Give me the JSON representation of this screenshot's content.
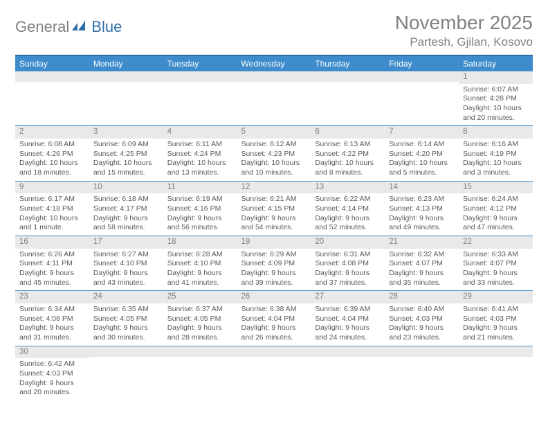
{
  "logo": {
    "text_gray": "General",
    "text_blue": "Blue"
  },
  "header": {
    "month_title": "November 2025",
    "location": "Partesh, Gjilan, Kosovo"
  },
  "colors": {
    "header_bg": "#3e8ccb",
    "accent": "#2f6fa8",
    "daynum_bg": "#e9e9e9",
    "text_gray": "#808080"
  },
  "day_labels": [
    "Sunday",
    "Monday",
    "Tuesday",
    "Wednesday",
    "Thursday",
    "Friday",
    "Saturday"
  ],
  "weeks": [
    [
      {
        "n": "",
        "sunrise": "",
        "sunset": "",
        "daylight": ""
      },
      {
        "n": "",
        "sunrise": "",
        "sunset": "",
        "daylight": ""
      },
      {
        "n": "",
        "sunrise": "",
        "sunset": "",
        "daylight": ""
      },
      {
        "n": "",
        "sunrise": "",
        "sunset": "",
        "daylight": ""
      },
      {
        "n": "",
        "sunrise": "",
        "sunset": "",
        "daylight": ""
      },
      {
        "n": "",
        "sunrise": "",
        "sunset": "",
        "daylight": ""
      },
      {
        "n": "1",
        "sunrise": "Sunrise: 6:07 AM",
        "sunset": "Sunset: 4:28 PM",
        "daylight": "Daylight: 10 hours and 20 minutes."
      }
    ],
    [
      {
        "n": "2",
        "sunrise": "Sunrise: 6:08 AM",
        "sunset": "Sunset: 4:26 PM",
        "daylight": "Daylight: 10 hours and 18 minutes."
      },
      {
        "n": "3",
        "sunrise": "Sunrise: 6:09 AM",
        "sunset": "Sunset: 4:25 PM",
        "daylight": "Daylight: 10 hours and 15 minutes."
      },
      {
        "n": "4",
        "sunrise": "Sunrise: 6:11 AM",
        "sunset": "Sunset: 4:24 PM",
        "daylight": "Daylight: 10 hours and 13 minutes."
      },
      {
        "n": "5",
        "sunrise": "Sunrise: 6:12 AM",
        "sunset": "Sunset: 4:23 PM",
        "daylight": "Daylight: 10 hours and 10 minutes."
      },
      {
        "n": "6",
        "sunrise": "Sunrise: 6:13 AM",
        "sunset": "Sunset: 4:22 PM",
        "daylight": "Daylight: 10 hours and 8 minutes."
      },
      {
        "n": "7",
        "sunrise": "Sunrise: 6:14 AM",
        "sunset": "Sunset: 4:20 PM",
        "daylight": "Daylight: 10 hours and 5 minutes."
      },
      {
        "n": "8",
        "sunrise": "Sunrise: 6:16 AM",
        "sunset": "Sunset: 4:19 PM",
        "daylight": "Daylight: 10 hours and 3 minutes."
      }
    ],
    [
      {
        "n": "9",
        "sunrise": "Sunrise: 6:17 AM",
        "sunset": "Sunset: 4:18 PM",
        "daylight": "Daylight: 10 hours and 1 minute."
      },
      {
        "n": "10",
        "sunrise": "Sunrise: 6:18 AM",
        "sunset": "Sunset: 4:17 PM",
        "daylight": "Daylight: 9 hours and 58 minutes."
      },
      {
        "n": "11",
        "sunrise": "Sunrise: 6:19 AM",
        "sunset": "Sunset: 4:16 PM",
        "daylight": "Daylight: 9 hours and 56 minutes."
      },
      {
        "n": "12",
        "sunrise": "Sunrise: 6:21 AM",
        "sunset": "Sunset: 4:15 PM",
        "daylight": "Daylight: 9 hours and 54 minutes."
      },
      {
        "n": "13",
        "sunrise": "Sunrise: 6:22 AM",
        "sunset": "Sunset: 4:14 PM",
        "daylight": "Daylight: 9 hours and 52 minutes."
      },
      {
        "n": "14",
        "sunrise": "Sunrise: 6:23 AM",
        "sunset": "Sunset: 4:13 PM",
        "daylight": "Daylight: 9 hours and 49 minutes."
      },
      {
        "n": "15",
        "sunrise": "Sunrise: 6:24 AM",
        "sunset": "Sunset: 4:12 PM",
        "daylight": "Daylight: 9 hours and 47 minutes."
      }
    ],
    [
      {
        "n": "16",
        "sunrise": "Sunrise: 6:26 AM",
        "sunset": "Sunset: 4:11 PM",
        "daylight": "Daylight: 9 hours and 45 minutes."
      },
      {
        "n": "17",
        "sunrise": "Sunrise: 6:27 AM",
        "sunset": "Sunset: 4:10 PM",
        "daylight": "Daylight: 9 hours and 43 minutes."
      },
      {
        "n": "18",
        "sunrise": "Sunrise: 6:28 AM",
        "sunset": "Sunset: 4:10 PM",
        "daylight": "Daylight: 9 hours and 41 minutes."
      },
      {
        "n": "19",
        "sunrise": "Sunrise: 6:29 AM",
        "sunset": "Sunset: 4:09 PM",
        "daylight": "Daylight: 9 hours and 39 minutes."
      },
      {
        "n": "20",
        "sunrise": "Sunrise: 6:31 AM",
        "sunset": "Sunset: 4:08 PM",
        "daylight": "Daylight: 9 hours and 37 minutes."
      },
      {
        "n": "21",
        "sunrise": "Sunrise: 6:32 AM",
        "sunset": "Sunset: 4:07 PM",
        "daylight": "Daylight: 9 hours and 35 minutes."
      },
      {
        "n": "22",
        "sunrise": "Sunrise: 6:33 AM",
        "sunset": "Sunset: 4:07 PM",
        "daylight": "Daylight: 9 hours and 33 minutes."
      }
    ],
    [
      {
        "n": "23",
        "sunrise": "Sunrise: 6:34 AM",
        "sunset": "Sunset: 4:06 PM",
        "daylight": "Daylight: 9 hours and 31 minutes."
      },
      {
        "n": "24",
        "sunrise": "Sunrise: 6:35 AM",
        "sunset": "Sunset: 4:05 PM",
        "daylight": "Daylight: 9 hours and 30 minutes."
      },
      {
        "n": "25",
        "sunrise": "Sunrise: 6:37 AM",
        "sunset": "Sunset: 4:05 PM",
        "daylight": "Daylight: 9 hours and 28 minutes."
      },
      {
        "n": "26",
        "sunrise": "Sunrise: 6:38 AM",
        "sunset": "Sunset: 4:04 PM",
        "daylight": "Daylight: 9 hours and 26 minutes."
      },
      {
        "n": "27",
        "sunrise": "Sunrise: 6:39 AM",
        "sunset": "Sunset: 4:04 PM",
        "daylight": "Daylight: 9 hours and 24 minutes."
      },
      {
        "n": "28",
        "sunrise": "Sunrise: 6:40 AM",
        "sunset": "Sunset: 4:03 PM",
        "daylight": "Daylight: 9 hours and 23 minutes."
      },
      {
        "n": "29",
        "sunrise": "Sunrise: 6:41 AM",
        "sunset": "Sunset: 4:03 PM",
        "daylight": "Daylight: 9 hours and 21 minutes."
      }
    ],
    [
      {
        "n": "30",
        "sunrise": "Sunrise: 6:42 AM",
        "sunset": "Sunset: 4:03 PM",
        "daylight": "Daylight: 9 hours and 20 minutes."
      },
      {
        "n": "",
        "sunrise": "",
        "sunset": "",
        "daylight": ""
      },
      {
        "n": "",
        "sunrise": "",
        "sunset": "",
        "daylight": ""
      },
      {
        "n": "",
        "sunrise": "",
        "sunset": "",
        "daylight": ""
      },
      {
        "n": "",
        "sunrise": "",
        "sunset": "",
        "daylight": ""
      },
      {
        "n": "",
        "sunrise": "",
        "sunset": "",
        "daylight": ""
      },
      {
        "n": "",
        "sunrise": "",
        "sunset": "",
        "daylight": ""
      }
    ]
  ]
}
